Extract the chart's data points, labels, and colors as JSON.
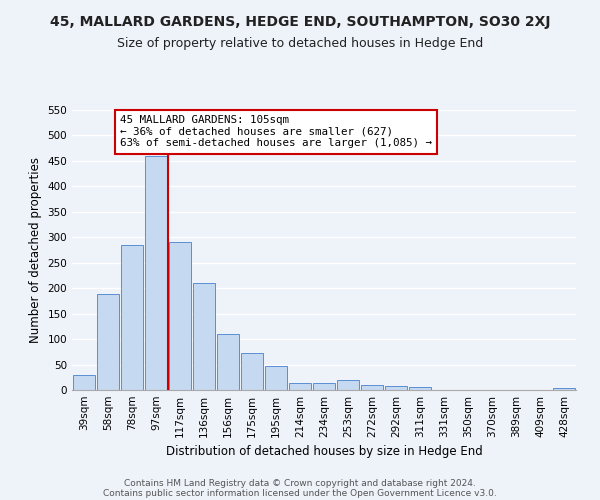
{
  "title": "45, MALLARD GARDENS, HEDGE END, SOUTHAMPTON, SO30 2XJ",
  "subtitle": "Size of property relative to detached houses in Hedge End",
  "xlabel": "Distribution of detached houses by size in Hedge End",
  "ylabel": "Number of detached properties",
  "bar_labels": [
    "39sqm",
    "58sqm",
    "78sqm",
    "97sqm",
    "117sqm",
    "136sqm",
    "156sqm",
    "175sqm",
    "195sqm",
    "214sqm",
    "234sqm",
    "253sqm",
    "272sqm",
    "292sqm",
    "311sqm",
    "331sqm",
    "350sqm",
    "370sqm",
    "389sqm",
    "409sqm",
    "428sqm"
  ],
  "bar_values": [
    30,
    188,
    284,
    460,
    290,
    210,
    110,
    72,
    47,
    13,
    13,
    20,
    10,
    8,
    5,
    0,
    0,
    0,
    0,
    0,
    4
  ],
  "bar_color": "#c5d9f1",
  "bar_edge_color": "#5b8fd4",
  "vline_x_index": 3.5,
  "vline_color": "#cc0000",
  "annotation_title": "45 MALLARD GARDENS: 105sqm",
  "annotation_line1": "← 36% of detached houses are smaller (627)",
  "annotation_line2": "63% of semi-detached houses are larger (1,085) →",
  "annotation_box_color": "#ffffff",
  "annotation_box_edge": "#cc0000",
  "ylim": [
    0,
    550
  ],
  "yticks": [
    0,
    50,
    100,
    150,
    200,
    250,
    300,
    350,
    400,
    450,
    500,
    550
  ],
  "footer1": "Contains HM Land Registry data © Crown copyright and database right 2024.",
  "footer2": "Contains public sector information licensed under the Open Government Licence v3.0.",
  "bg_color": "#eef2f9",
  "grid_color": "#ffffff",
  "title_fontsize": 10,
  "subtitle_fontsize": 9,
  "axis_label_fontsize": 8.5,
  "tick_fontsize": 7.5,
  "footer_fontsize": 6.5
}
